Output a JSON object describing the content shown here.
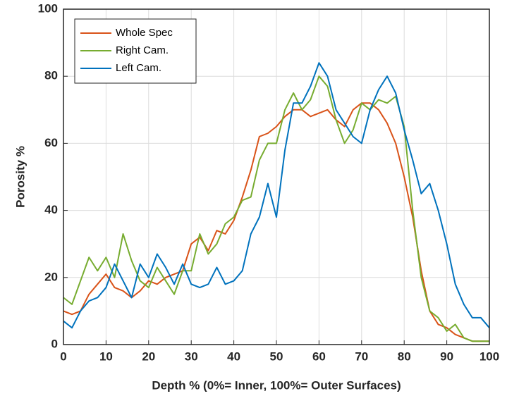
{
  "chart_data": {
    "type": "line",
    "x_label": "Depth % (0%= Inner, 100%= Outer Surfaces)",
    "y_label": "Porosity %",
    "x": [
      0,
      2,
      4,
      6,
      8,
      10,
      12,
      14,
      16,
      18,
      20,
      22,
      24,
      26,
      28,
      30,
      32,
      34,
      36,
      38,
      40,
      42,
      44,
      46,
      48,
      50,
      52,
      54,
      56,
      58,
      60,
      62,
      64,
      66,
      68,
      70,
      72,
      74,
      76,
      78,
      80,
      82,
      84,
      86,
      88,
      90,
      92,
      94,
      96,
      98,
      100
    ],
    "series": [
      {
        "name": "Whole Spec",
        "color": "#d95319",
        "values": [
          10,
          9,
          10,
          15,
          18,
          21,
          17,
          16,
          14,
          16,
          19,
          18,
          20,
          21,
          22,
          30,
          32,
          28,
          34,
          33,
          37,
          44,
          52,
          62,
          63,
          65,
          68,
          70,
          70,
          68,
          69,
          70,
          67,
          65,
          70,
          72,
          72,
          70,
          66,
          60,
          50,
          38,
          22,
          10,
          6,
          5,
          3,
          2,
          1,
          1,
          1
        ]
      },
      {
        "name": "Right Cam.",
        "color": "#77ac30",
        "values": [
          14,
          12,
          19,
          26,
          22,
          26,
          20,
          33,
          25,
          19,
          17,
          23,
          19,
          15,
          22,
          22,
          33,
          27,
          30,
          36,
          38,
          43,
          44,
          55,
          60,
          60,
          70,
          75,
          70,
          73,
          80,
          77,
          67,
          60,
          64,
          72,
          70,
          73,
          72,
          74,
          65,
          40,
          20,
          10,
          8,
          4,
          6,
          2,
          1,
          1,
          1
        ]
      },
      {
        "name": "Left Cam.",
        "color": "#0072bd",
        "values": [
          7,
          5,
          10,
          13,
          14,
          17,
          24,
          19,
          14,
          24,
          20,
          27,
          23,
          18,
          24,
          18,
          17,
          18,
          23,
          18,
          19,
          22,
          33,
          38,
          48,
          38,
          58,
          72,
          72,
          77,
          84,
          80,
          70,
          66,
          62,
          60,
          70,
          76,
          80,
          75,
          64,
          55,
          45,
          48,
          40,
          30,
          18,
          12,
          8,
          8,
          5
        ]
      }
    ],
    "xlim": [
      0,
      100
    ],
    "xticks": [
      0,
      10,
      20,
      30,
      40,
      50,
      60,
      70,
      80,
      90,
      100
    ],
    "ylim": [
      0,
      100
    ],
    "yticks": [
      0,
      20,
      40,
      60,
      80,
      100
    ],
    "grid": true,
    "legend": "upper left"
  }
}
